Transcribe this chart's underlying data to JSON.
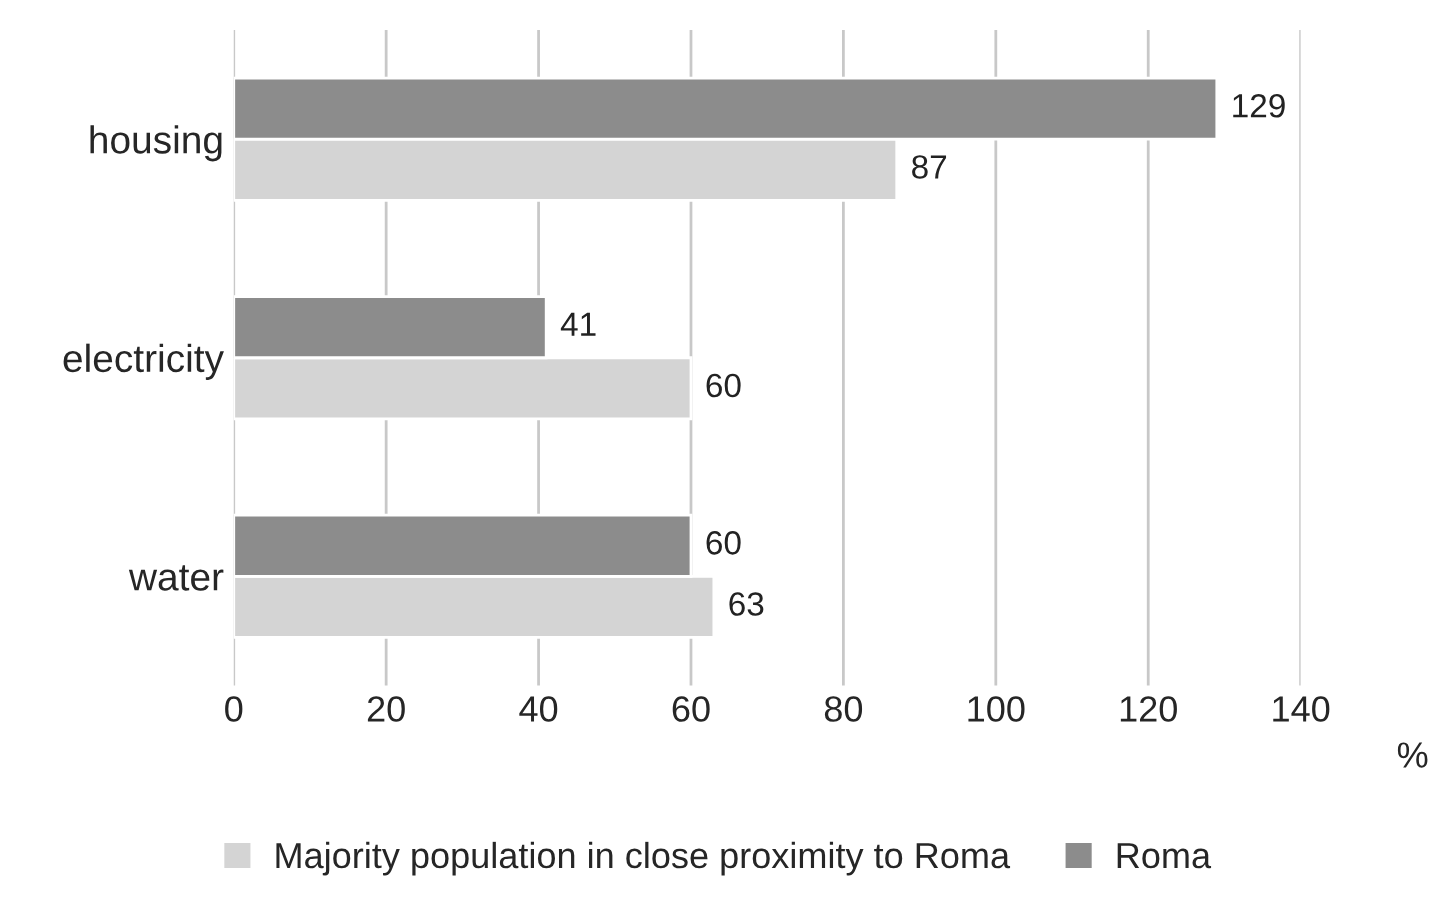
{
  "chart_data": {
    "type": "bar",
    "orientation": "horizontal",
    "categories": [
      "housing",
      "electricity",
      "water"
    ],
    "series": [
      {
        "name": "Majority population in close proximity to Roma",
        "color": "#d4d4d4",
        "values": [
          87,
          60,
          63
        ]
      },
      {
        "name": "Roma",
        "color": "#8c8c8c",
        "values": [
          129,
          41,
          60
        ]
      }
    ],
    "xlabel": "%",
    "xlim": [
      0,
      140
    ],
    "xticks": [
      0,
      20,
      40,
      60,
      80,
      100,
      120,
      140
    ],
    "grid": "x",
    "legend": "bottom",
    "data_labels": true
  }
}
